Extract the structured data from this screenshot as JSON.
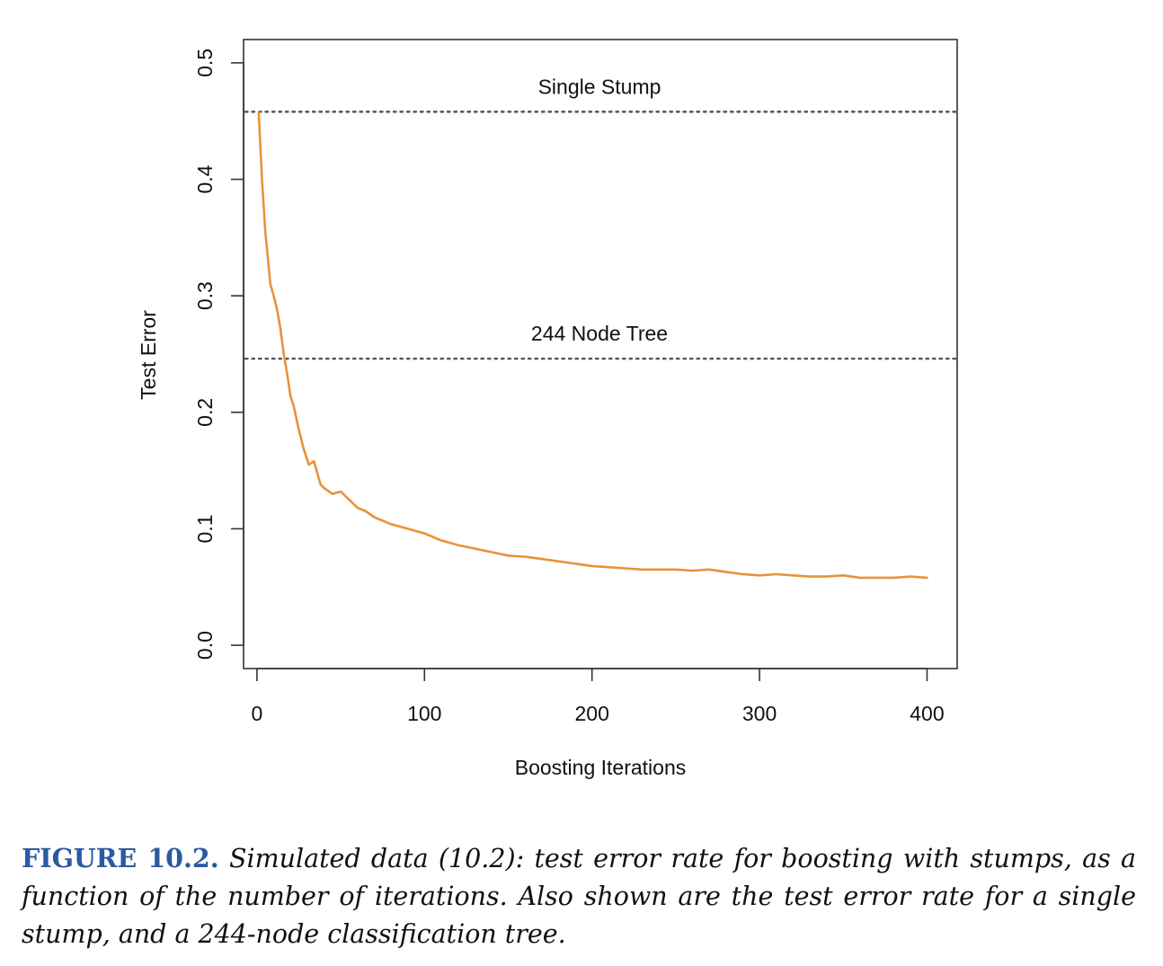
{
  "chart_data": {
    "type": "line",
    "xlabel": "Boosting Iterations",
    "ylabel": "Test Error",
    "xlim": [
      -8,
      418
    ],
    "ylim": [
      -0.02,
      0.52
    ],
    "x_ticks": [
      0,
      100,
      200,
      300,
      400
    ],
    "x_tick_labels": [
      "0",
      "100",
      "200",
      "300",
      "400"
    ],
    "y_ticks": [
      0.0,
      0.1,
      0.2,
      0.3,
      0.4,
      0.5
    ],
    "y_tick_labels": [
      "0.0",
      "0.1",
      "0.2",
      "0.3",
      "0.4",
      "0.5"
    ],
    "grid": false,
    "reference_lines": [
      {
        "label": "Single Stump",
        "y": 0.458,
        "style": "dotted",
        "color": "#555555"
      },
      {
        "label": "244 Node Tree",
        "y": 0.246,
        "style": "dotted",
        "color": "#555555"
      }
    ],
    "series": [
      {
        "color": "#e8923a",
        "x": [
          1,
          3,
          5,
          8,
          10,
          12,
          14,
          16,
          18,
          20,
          22,
          25,
          28,
          31,
          34,
          36,
          38,
          40,
          45,
          50,
          55,
          60,
          65,
          70,
          80,
          90,
          100,
          110,
          120,
          130,
          140,
          150,
          160,
          170,
          180,
          190,
          200,
          210,
          220,
          230,
          240,
          250,
          260,
          270,
          280,
          290,
          300,
          310,
          320,
          330,
          340,
          350,
          360,
          370,
          380,
          390,
          400
        ],
        "y": [
          0.458,
          0.4,
          0.355,
          0.31,
          0.3,
          0.288,
          0.272,
          0.25,
          0.233,
          0.214,
          0.205,
          0.185,
          0.168,
          0.155,
          0.158,
          0.148,
          0.138,
          0.135,
          0.13,
          0.132,
          0.125,
          0.118,
          0.115,
          0.11,
          0.104,
          0.1,
          0.096,
          0.09,
          0.086,
          0.083,
          0.08,
          0.077,
          0.076,
          0.074,
          0.072,
          0.07,
          0.068,
          0.067,
          0.066,
          0.065,
          0.065,
          0.065,
          0.064,
          0.065,
          0.063,
          0.061,
          0.06,
          0.061,
          0.06,
          0.059,
          0.059,
          0.06,
          0.058,
          0.058,
          0.058,
          0.059,
          0.058
        ]
      }
    ]
  },
  "caption": {
    "label": "FIGURE 10.2.",
    "text": "Simulated data (10.2): test error rate for boosting with stumps, as a function of the number of iterations. Also shown are the test error rate for a single stump, and a 244-node classification tree."
  }
}
